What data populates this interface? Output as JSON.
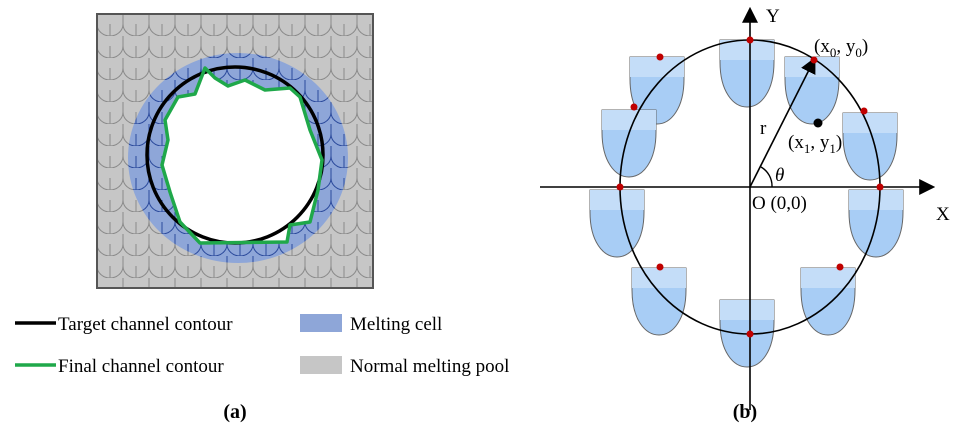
{
  "panel_a": {
    "legend": [
      {
        "label": "Target channel contour"
      },
      {
        "label": "Melting cell"
      },
      {
        "label": "Final channel contour"
      },
      {
        "label": "Normal melting pool"
      }
    ],
    "caption": "(a)"
  },
  "panel_b": {
    "y_axis": "Y",
    "x_axis": "X",
    "radius": "r",
    "angle": "θ",
    "origin": "O (0,0)",
    "point0": [
      "(x",
      "0",
      ", y",
      "0",
      ")"
    ],
    "point1": [
      "(x",
      "1",
      ", y",
      "1",
      ")"
    ],
    "caption": "(b)"
  }
}
